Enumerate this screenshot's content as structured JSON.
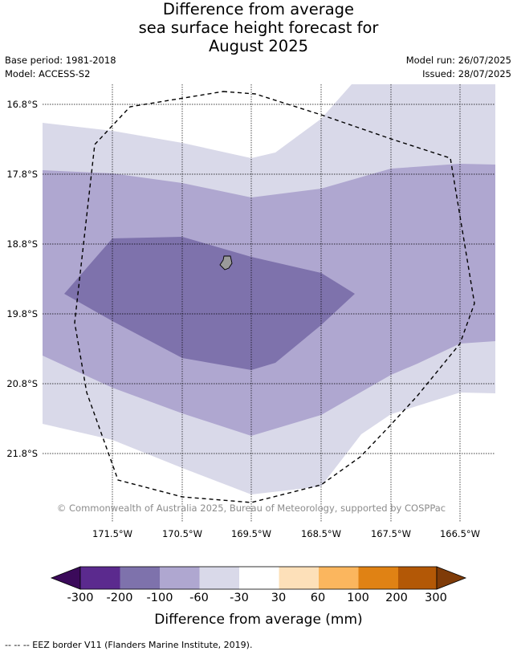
{
  "title": {
    "line1": "Difference from average",
    "line2": "sea surface height forecast for",
    "line3": "August 2025"
  },
  "meta": {
    "base_period": "Base period: 1981-2018",
    "model": "Model: ACCESS-S2",
    "model_run": "Model run: 26/07/2025",
    "issued": "Issued: 28/07/2025"
  },
  "map": {
    "lat_labels": [
      "16.8°S",
      "17.8°S",
      "18.8°S",
      "19.8°S",
      "20.8°S",
      "21.8°S"
    ],
    "lon_labels": [
      "171.5°W",
      "170.5°W",
      "169.5°W",
      "168.5°W",
      "167.5°W",
      "166.5°W"
    ],
    "copyright": "© Commonwealth of Australia 2025, Bureau of Meteorology, supported by COSPPac"
  },
  "colorbar": {
    "title": "Difference from average (mm)",
    "tick_labels": [
      "-300",
      "-200",
      "-100",
      "-60",
      "-30",
      "30",
      "60",
      "100",
      "200",
      "300"
    ],
    "colors": {
      "under": "#3b0a5a",
      "bins": [
        "#5b2a8e",
        "#7e72ac",
        "#afa7d0",
        "#d9d9e9",
        "#ffffff",
        "#fde0b9",
        "#fbb65e",
        "#e08214",
        "#b35806"
      ],
      "over": "#7f3b08"
    }
  },
  "footnote": "-- -- -- EEZ border V11 (Flanders Marine Institute, 2019)."
}
